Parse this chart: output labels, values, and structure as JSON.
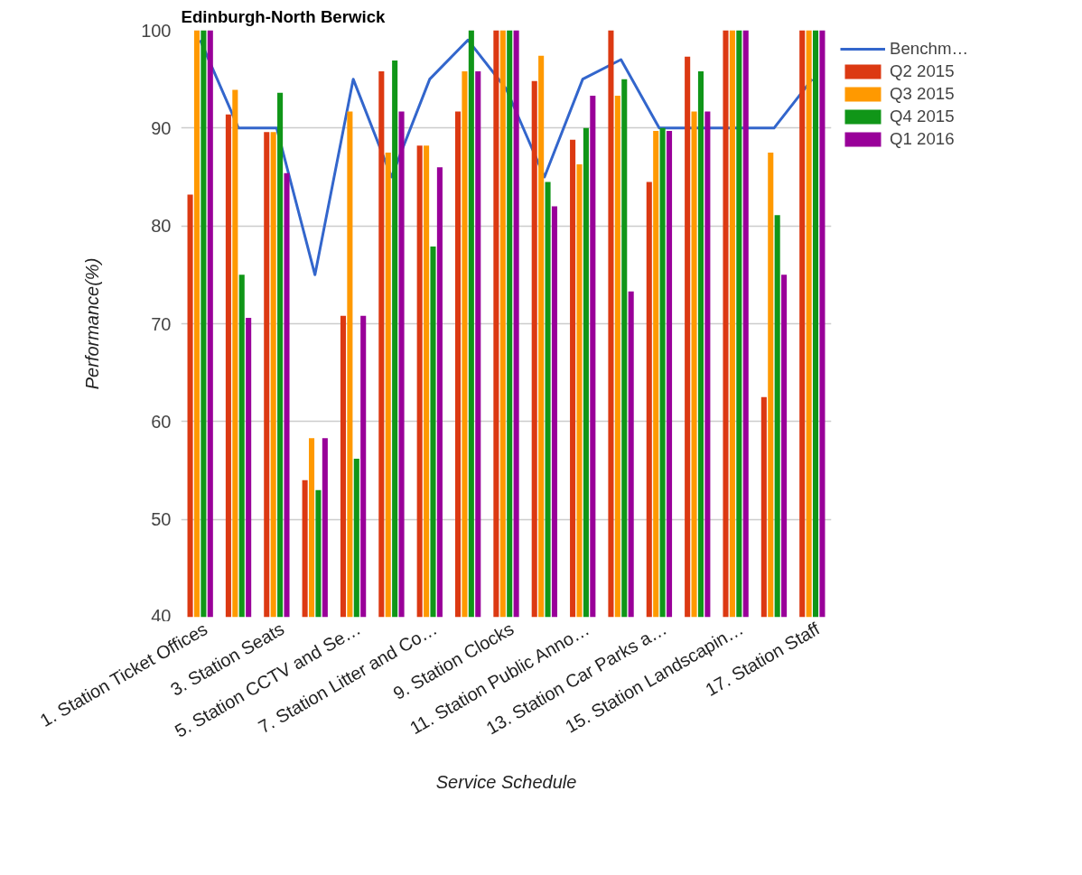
{
  "chart_data": {
    "type": "bar",
    "title": "Edinburgh-North Berwick",
    "xlabel": "Service Schedule",
    "ylabel": "Performance(%)",
    "categories": [
      "1. Station Ticket Offices",
      null,
      "3. Station Seats",
      null,
      "5. Station CCTV and Se…",
      null,
      "7. Station Litter and Co…",
      null,
      "9. Station Clocks",
      null,
      "11. Station Public Anno…",
      null,
      "13. Station Car Parks a…",
      null,
      "15. Station Landscapin…",
      null,
      "17. Station Staff"
    ],
    "series": [
      {
        "name": "Benchm…",
        "type": "line",
        "color": "#3366cc",
        "values": [
          99,
          90,
          90,
          75,
          95,
          85,
          95,
          99,
          94,
          85,
          95,
          97,
          90,
          90,
          90,
          90,
          95
        ]
      },
      {
        "name": "Q2 2015",
        "color": "#dc3912",
        "values": [
          83.2,
          91.4,
          89.6,
          54,
          70.8,
          95.8,
          88.2,
          91.7,
          100,
          94.8,
          88.8,
          100,
          84.5,
          97.3,
          100,
          62.5,
          100
        ]
      },
      {
        "name": "Q3 2015",
        "color": "#ff9900",
        "values": [
          100,
          93.9,
          89.6,
          58.3,
          91.7,
          87.5,
          88.2,
          95.8,
          100,
          97.4,
          86.3,
          93.3,
          89.7,
          91.7,
          100,
          87.5,
          100
        ]
      },
      {
        "name": "Q4 2015",
        "color": "#109618",
        "values": [
          100,
          75,
          93.6,
          53,
          56.2,
          96.9,
          77.9,
          100,
          100,
          84.5,
          90,
          95,
          90,
          95.8,
          100,
          81.1,
          100
        ]
      },
      {
        "name": "Q1 2016",
        "color": "#990099",
        "values": [
          100,
          70.6,
          85.4,
          58.3,
          70.8,
          91.7,
          86,
          95.8,
          100,
          82,
          93.3,
          73.3,
          89.7,
          91.7,
          100,
          75,
          100
        ]
      }
    ],
    "ylim": [
      40,
      100
    ],
    "yticks": [
      40,
      50,
      60,
      70,
      80,
      90,
      100
    ],
    "grid": "y",
    "legend": "right",
    "marker": "none",
    "line_style": "solid"
  }
}
